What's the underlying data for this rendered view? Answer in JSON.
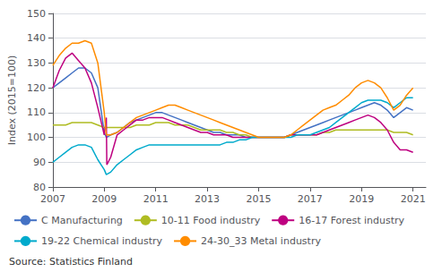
{
  "chart_data": {
    "type": "line",
    "ylabel": "Index (2015=100)",
    "annotations": [
      "Source: Statistics Finland"
    ],
    "xlim": [
      2007.0,
      2021.5
    ],
    "ylim": [
      80,
      150
    ],
    "xticks": [
      2007,
      2009,
      2011,
      2013,
      2015,
      2017,
      2019,
      2021
    ],
    "yticks": [
      80,
      90,
      100,
      110,
      120,
      130,
      140,
      150
    ],
    "grid": true,
    "legend": "bottom",
    "series": [
      {
        "name": "C Manufacturing",
        "color": "#4472C4",
        "x": [
          2007.0,
          2007.25,
          2007.5,
          2007.75,
          2008.0,
          2008.25,
          2008.5,
          2008.75,
          2009.0,
          2009.08,
          2009.25,
          2009.5,
          2009.75,
          2010.0,
          2010.25,
          2010.5,
          2010.75,
          2011.0,
          2011.25,
          2011.5,
          2011.75,
          2012.0,
          2012.25,
          2012.5,
          2012.75,
          2013.0,
          2013.25,
          2013.5,
          2013.75,
          2014.0,
          2014.25,
          2014.5,
          2014.75,
          2015.0,
          2015.25,
          2015.5,
          2015.75,
          2016.0,
          2016.25,
          2016.5,
          2016.75,
          2017.0,
          2017.25,
          2017.5,
          2017.75,
          2018.0,
          2018.25,
          2018.5,
          2018.75,
          2019.0,
          2019.25,
          2019.5,
          2019.75,
          2020.0,
          2020.25,
          2020.5,
          2020.75,
          2021.0
        ],
        "values": [
          120,
          122,
          124,
          126,
          128,
          128,
          126,
          120,
          102,
          100,
          101,
          102,
          104,
          106,
          107,
          108,
          109,
          110,
          110,
          109,
          108,
          107,
          106,
          105,
          104,
          103,
          102,
          102,
          101,
          101,
          101,
          100,
          100,
          100,
          100,
          100,
          100,
          100,
          101,
          102,
          103,
          104,
          105,
          106,
          107,
          108,
          109,
          110,
          111,
          112,
          113,
          114,
          113,
          111,
          108,
          110,
          112,
          111
        ]
      },
      {
        "name": "10-11 Food industry",
        "color": "#AFBC22",
        "x": [
          2007.0,
          2007.25,
          2007.5,
          2007.75,
          2008.0,
          2008.25,
          2008.5,
          2008.75,
          2009.0,
          2009.25,
          2009.5,
          2009.75,
          2010.0,
          2010.25,
          2010.5,
          2010.75,
          2011.0,
          2011.25,
          2011.5,
          2011.75,
          2012.0,
          2012.25,
          2012.5,
          2012.75,
          2013.0,
          2013.25,
          2013.5,
          2013.75,
          2014.0,
          2014.25,
          2014.5,
          2014.75,
          2015.0,
          2015.25,
          2015.5,
          2015.75,
          2016.0,
          2016.25,
          2016.5,
          2016.75,
          2017.0,
          2017.25,
          2017.5,
          2017.75,
          2018.0,
          2018.25,
          2018.5,
          2018.75,
          2019.0,
          2019.25,
          2019.5,
          2019.75,
          2020.0,
          2020.25,
          2020.5,
          2020.75,
          2021.0
        ],
        "values": [
          105,
          105,
          105,
          106,
          106,
          106,
          106,
          105,
          104,
          104,
          104,
          104,
          104,
          105,
          105,
          105,
          106,
          106,
          106,
          105,
          105,
          105,
          104,
          103,
          103,
          103,
          103,
          102,
          102,
          101,
          101,
          100,
          100,
          100,
          100,
          100,
          100,
          101,
          101,
          101,
          101,
          101,
          102,
          102,
          103,
          103,
          103,
          103,
          103,
          103,
          103,
          103,
          103,
          102,
          102,
          102,
          101
        ]
      },
      {
        "name": "16-17 Forest industry",
        "color": "#BE0080",
        "x": [
          2007.0,
          2007.25,
          2007.5,
          2007.75,
          2008.0,
          2008.25,
          2008.5,
          2008.75,
          2009.0,
          2009.08,
          2009.1,
          2009.25,
          2009.5,
          2009.75,
          2010.0,
          2010.25,
          2010.5,
          2010.75,
          2011.0,
          2011.25,
          2011.5,
          2011.75,
          2012.0,
          2012.25,
          2012.5,
          2012.75,
          2013.0,
          2013.25,
          2013.5,
          2013.75,
          2014.0,
          2014.25,
          2014.5,
          2014.75,
          2015.0,
          2015.25,
          2015.5,
          2015.75,
          2016.0,
          2016.25,
          2016.5,
          2016.75,
          2017.0,
          2017.25,
          2017.5,
          2017.75,
          2018.0,
          2018.25,
          2018.5,
          2018.75,
          2019.0,
          2019.25,
          2019.5,
          2019.75,
          2020.0,
          2020.25,
          2020.5,
          2020.75,
          2021.0
        ],
        "values": [
          120,
          127,
          132,
          134,
          131,
          128,
          122,
          112,
          101,
          108,
          89,
          92,
          101,
          103,
          105,
          107,
          107,
          108,
          108,
          108,
          107,
          106,
          105,
          104,
          103,
          102,
          102,
          101,
          101,
          101,
          100,
          100,
          100,
          100,
          100,
          100,
          100,
          100,
          100,
          101,
          101,
          101,
          101,
          101,
          102,
          103,
          104,
          105,
          106,
          107,
          108,
          109,
          108,
          106,
          103,
          98,
          95,
          95,
          94
        ]
      },
      {
        "name": "19-22 Chemical industry",
        "color": "#00AACC",
        "x": [
          2007.0,
          2007.25,
          2007.5,
          2007.75,
          2008.0,
          2008.25,
          2008.5,
          2008.75,
          2009.0,
          2009.08,
          2009.25,
          2009.5,
          2009.75,
          2010.0,
          2010.25,
          2010.5,
          2010.75,
          2011.0,
          2011.25,
          2011.5,
          2011.75,
          2012.0,
          2012.25,
          2012.5,
          2012.75,
          2013.0,
          2013.25,
          2013.5,
          2013.75,
          2014.0,
          2014.25,
          2014.5,
          2014.75,
          2015.0,
          2015.25,
          2015.5,
          2015.75,
          2016.0,
          2016.25,
          2016.5,
          2016.75,
          2017.0,
          2017.25,
          2017.5,
          2017.75,
          2018.0,
          2018.25,
          2018.5,
          2018.75,
          2019.0,
          2019.25,
          2019.5,
          2019.75,
          2020.0,
          2020.25,
          2020.5,
          2020.75,
          2021.0
        ],
        "values": [
          90,
          92,
          94,
          96,
          97,
          97,
          96,
          91,
          87,
          85,
          86,
          89,
          91,
          93,
          95,
          96,
          97,
          97,
          97,
          97,
          97,
          97,
          97,
          97,
          97,
          97,
          97,
          97,
          98,
          98,
          99,
          99,
          100,
          100,
          100,
          100,
          100,
          100,
          100,
          101,
          101,
          101,
          102,
          103,
          104,
          106,
          108,
          110,
          112,
          114,
          115,
          115,
          115,
          114,
          112,
          114,
          116,
          116
        ]
      },
      {
        "name": "24-30_33 Metal industry",
        "color": "#FF8C00",
        "x": [
          2007.0,
          2007.25,
          2007.5,
          2007.75,
          2008.0,
          2008.25,
          2008.5,
          2008.75,
          2009.0,
          2009.08,
          2009.25,
          2009.5,
          2009.75,
          2010.0,
          2010.25,
          2010.5,
          2010.75,
          2011.0,
          2011.25,
          2011.5,
          2011.75,
          2012.0,
          2012.25,
          2012.5,
          2012.75,
          2013.0,
          2013.25,
          2013.5,
          2013.75,
          2014.0,
          2014.25,
          2014.5,
          2014.75,
          2015.0,
          2015.25,
          2015.5,
          2015.75,
          2016.0,
          2016.25,
          2016.5,
          2016.75,
          2017.0,
          2017.25,
          2017.5,
          2017.75,
          2018.0,
          2018.25,
          2018.5,
          2018.75,
          2019.0,
          2019.25,
          2019.5,
          2019.75,
          2020.0,
          2020.25,
          2020.5,
          2020.75,
          2021.0
        ],
        "values": [
          129,
          133,
          136,
          138,
          138,
          139,
          138,
          130,
          110,
          101,
          101,
          102,
          104,
          106,
          108,
          109,
          110,
          111,
          112,
          113,
          113,
          112,
          111,
          110,
          109,
          108,
          107,
          106,
          105,
          104,
          103,
          102,
          101,
          100,
          100,
          100,
          100,
          100,
          101,
          103,
          105,
          107,
          109,
          111,
          112,
          113,
          115,
          117,
          120,
          122,
          123,
          122,
          120,
          116,
          111,
          113,
          117,
          120
        ]
      }
    ]
  }
}
